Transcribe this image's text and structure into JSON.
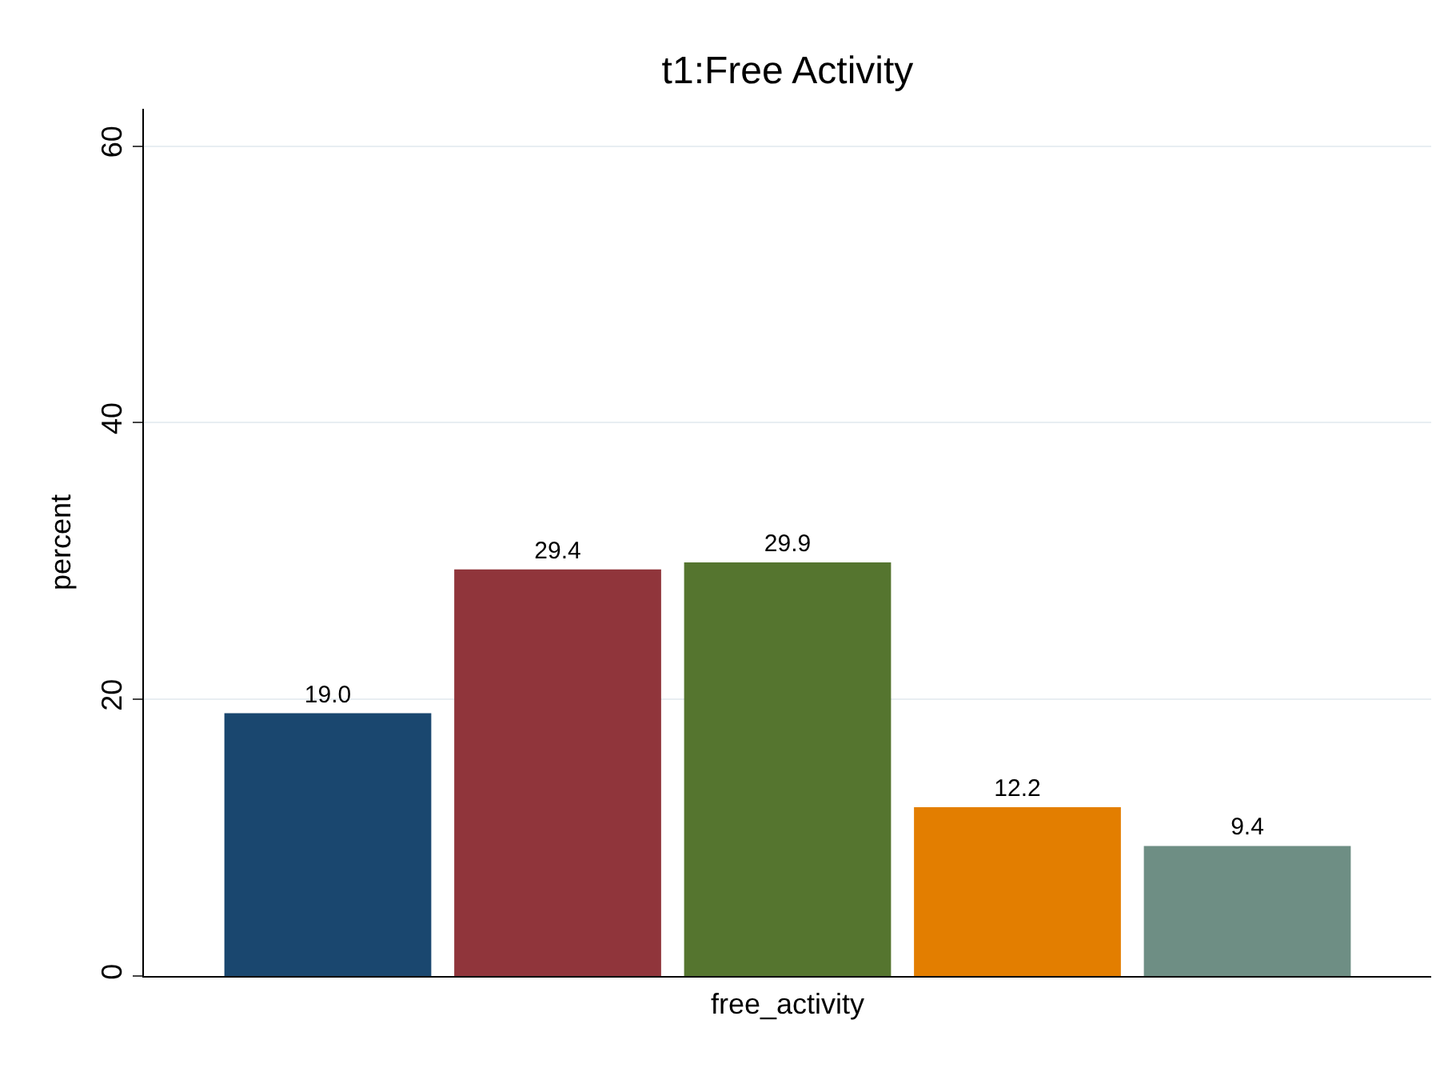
{
  "chart_data": {
    "type": "bar",
    "title": "t1:Free Activity",
    "xlabel": "free_activity",
    "ylabel": "percent",
    "categories": [
      null,
      null,
      null,
      null,
      null
    ],
    "values": [
      19.0,
      29.4,
      29.9,
      12.2,
      9.4
    ],
    "colors": [
      "#1a476f",
      "#90353b",
      "#55752f",
      "#e37e00",
      "#6e8e84"
    ],
    "value_labels": [
      "19.0",
      "29.4",
      "29.9",
      "12.2",
      "9.4"
    ],
    "ylim": [
      0,
      62.7
    ],
    "yticks": [
      0,
      20,
      40,
      60
    ],
    "grid": "y"
  }
}
